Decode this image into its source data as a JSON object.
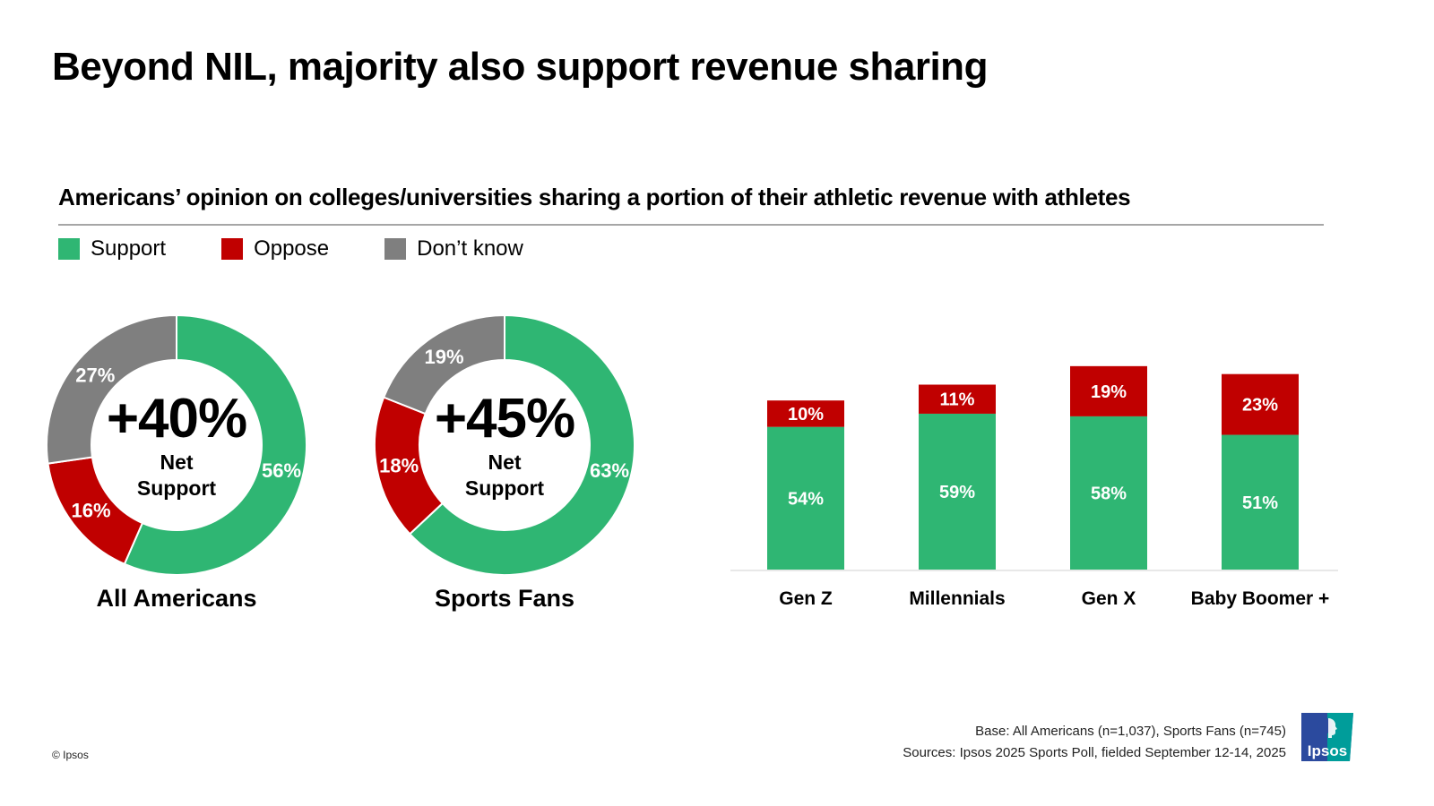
{
  "title": "Beyond NIL, majority also support revenue sharing",
  "subtitle": "Americans’ opinion on colleges/universities sharing a portion of their athletic revenue with athletes",
  "colors": {
    "support": "#2fb673",
    "oppose": "#c00000",
    "dont_know": "#7f7f7f",
    "logo_blue": "#2b4a9e",
    "logo_teal": "#009d9a"
  },
  "legend": [
    {
      "label": "Support",
      "color": "#2fb673"
    },
    {
      "label": "Oppose",
      "color": "#c00000"
    },
    {
      "label": "Don’t know",
      "color": "#7f7f7f"
    }
  ],
  "chart_data": [
    {
      "type": "pie",
      "variant": "donut",
      "title": "All Americans",
      "center_value": "+40%",
      "center_label": "Net Support",
      "slices": [
        {
          "name": "Support",
          "value": 56,
          "label": "56%"
        },
        {
          "name": "Oppose",
          "value": 16,
          "label": "16%"
        },
        {
          "name": "Don’t know",
          "value": 27,
          "label": "27%"
        }
      ]
    },
    {
      "type": "pie",
      "variant": "donut",
      "title": "Sports Fans",
      "center_value": "+45%",
      "center_label": "Net Support",
      "slices": [
        {
          "name": "Support",
          "value": 63,
          "label": "63%"
        },
        {
          "name": "Oppose",
          "value": 18,
          "label": "18%"
        },
        {
          "name": "Don’t know",
          "value": 19,
          "label": "19%"
        }
      ]
    },
    {
      "type": "bar",
      "stacked": true,
      "title": "",
      "xlabel": "",
      "ylabel": "",
      "grid": false,
      "ylim": [
        0,
        80
      ],
      "categories": [
        "Gen Z",
        "Millennials",
        "Gen X",
        "Baby Boomer +"
      ],
      "series": [
        {
          "name": "Support",
          "values": [
            54,
            59,
            58,
            51
          ],
          "labels": [
            "54%",
            "59%",
            "58%",
            "51%"
          ]
        },
        {
          "name": "Oppose",
          "values": [
            10,
            11,
            19,
            23
          ],
          "labels": [
            "10%",
            "11%",
            "19%",
            "23%"
          ]
        }
      ]
    }
  ],
  "footer": {
    "base": "Base: All Americans (n=1,037), Sports Fans (n=745)",
    "sources": "Sources: Ipsos 2025 Sports Poll, fielded September 12-14, 2025",
    "copyright": "© Ipsos",
    "logo_text": "Ipsos"
  }
}
